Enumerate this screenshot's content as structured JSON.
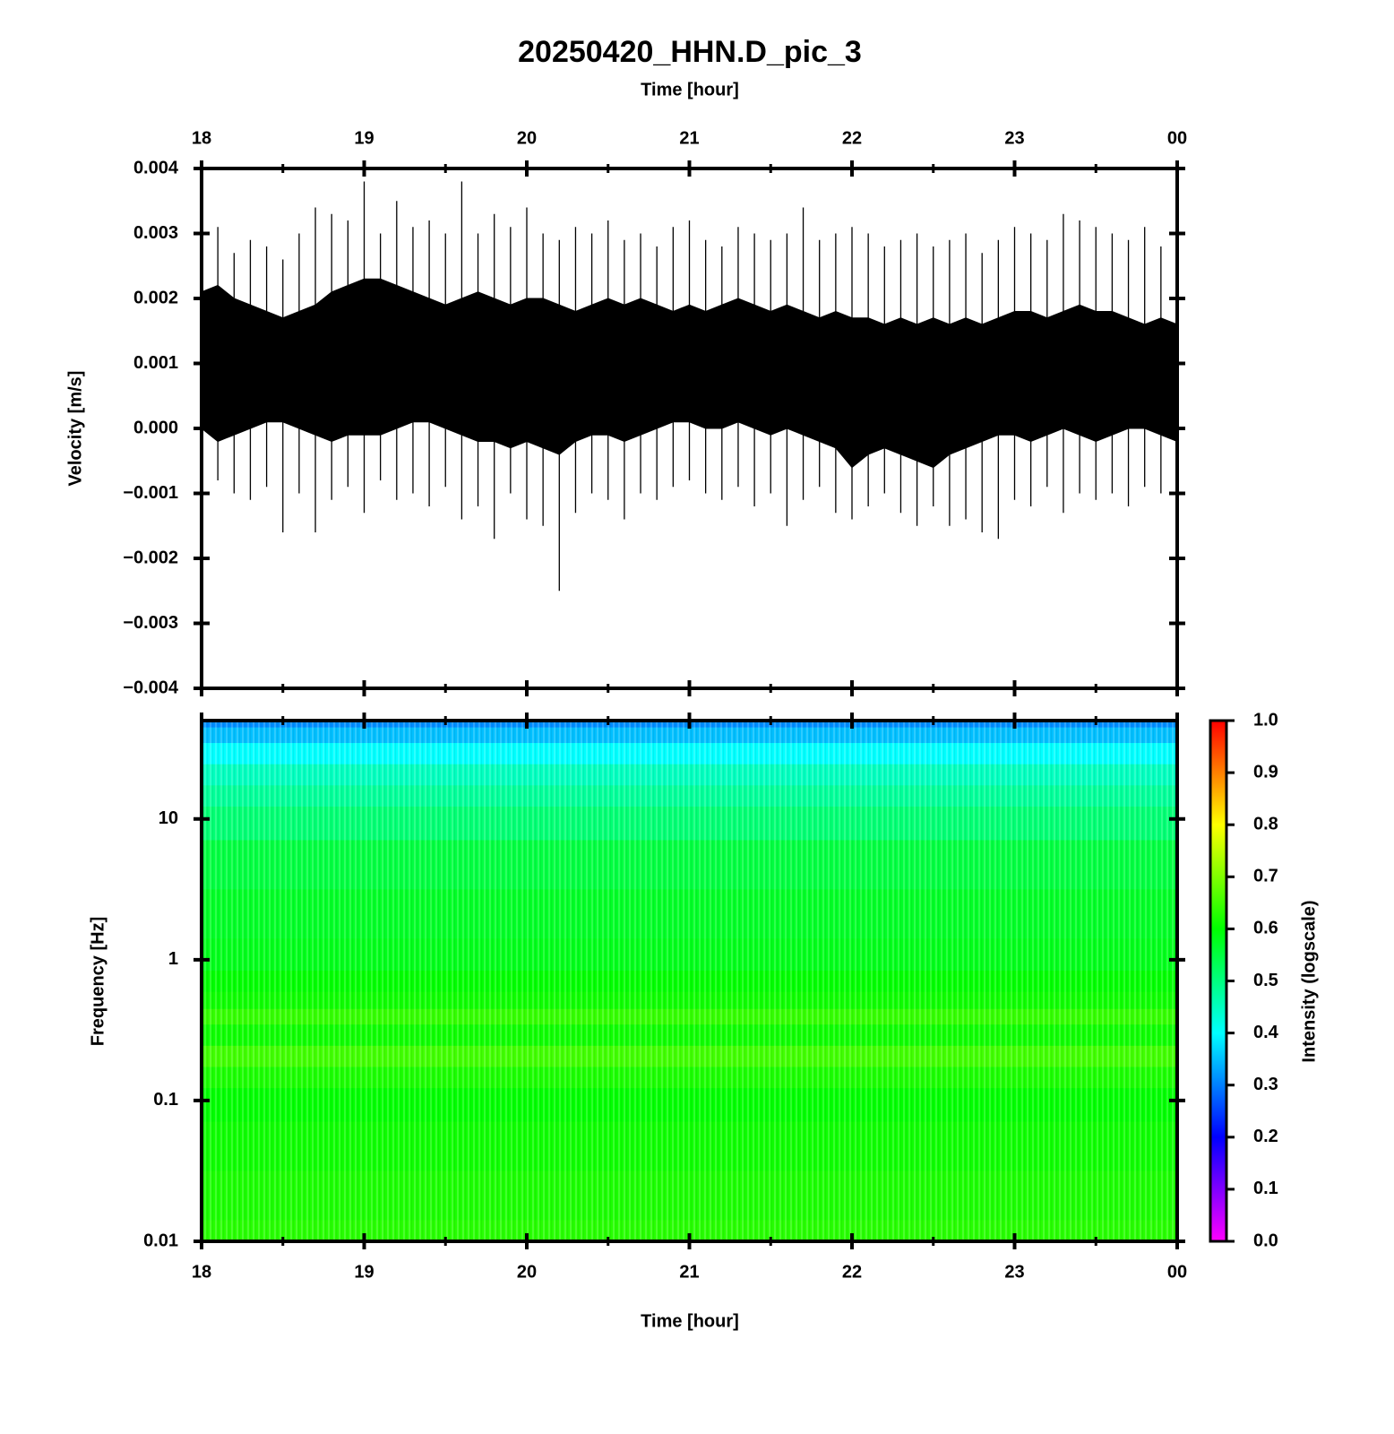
{
  "chart_data": [
    {
      "type": "waveform",
      "title": "20250420_HHN.D_pic_3",
      "xlabel": "Time [hour]",
      "ylabel": "Velocity [m/s]",
      "xlim": [
        18,
        24
      ],
      "xticks": [
        18,
        19,
        20,
        21,
        22,
        23,
        {
          "value": 24,
          "label": "00"
        }
      ],
      "ylim": [
        -0.004,
        0.004
      ],
      "yticks": [
        {
          "value": -0.004,
          "label": "−0.004"
        },
        {
          "value": -0.003,
          "label": "−0.003"
        },
        {
          "value": -0.002,
          "label": "−0.002"
        },
        {
          "value": -0.001,
          "label": "−0.001"
        },
        {
          "value": 0,
          "label": "0.000"
        },
        0.001,
        0.002,
        0.003,
        0.004
      ],
      "color": "#000000",
      "x": [
        18,
        18.1,
        18.2,
        18.3,
        18.4,
        18.5,
        18.6,
        18.7,
        18.8,
        18.9,
        19,
        19.1,
        19.2,
        19.3,
        19.4,
        19.5,
        19.6,
        19.7,
        19.8,
        19.9,
        20,
        20.1,
        20.2,
        20.3,
        20.4,
        20.5,
        20.6,
        20.7,
        20.8,
        20.9,
        21,
        21.1,
        21.2,
        21.3,
        21.4,
        21.5,
        21.6,
        21.7,
        21.8,
        21.9,
        22,
        22.1,
        22.2,
        22.3,
        22.4,
        22.5,
        22.6,
        22.7,
        22.8,
        22.9,
        23,
        23.1,
        23.2,
        23.3,
        23.4,
        23.5,
        23.6,
        23.7,
        23.8,
        23.9,
        24
      ],
      "core_upper": [
        0.0021,
        0.0022,
        0.002,
        0.0019,
        0.0018,
        0.0017,
        0.0018,
        0.0019,
        0.0021,
        0.0022,
        0.0023,
        0.0023,
        0.0022,
        0.0021,
        0.002,
        0.0019,
        0.002,
        0.0021,
        0.002,
        0.0019,
        0.002,
        0.002,
        0.0019,
        0.0018,
        0.0019,
        0.002,
        0.0019,
        0.002,
        0.0019,
        0.0018,
        0.0019,
        0.0018,
        0.0019,
        0.002,
        0.0019,
        0.0018,
        0.0019,
        0.0018,
        0.0017,
        0.0018,
        0.0017,
        0.0017,
        0.0016,
        0.0017,
        0.0016,
        0.0017,
        0.0016,
        0.0017,
        0.0016,
        0.0017,
        0.0018,
        0.0018,
        0.0017,
        0.0018,
        0.0019,
        0.0018,
        0.0018,
        0.0017,
        0.0016,
        0.0017,
        0.0016
      ],
      "core_lower": [
        0.0,
        -0.0002,
        -0.0001,
        0.0,
        0.0001,
        0.0001,
        0.0,
        -0.0001,
        -0.0002,
        -0.0001,
        -0.0001,
        -0.0001,
        0.0,
        0.0001,
        0.0001,
        0.0,
        -0.0001,
        -0.0002,
        -0.0002,
        -0.0003,
        -0.0002,
        -0.0003,
        -0.0004,
        -0.0002,
        -0.0001,
        -0.0001,
        -0.0002,
        -0.0001,
        0.0,
        0.0001,
        0.0001,
        0.0,
        0.0,
        0.0001,
        0.0,
        -0.0001,
        0.0,
        -0.0001,
        -0.0002,
        -0.0003,
        -0.0006,
        -0.0004,
        -0.0003,
        -0.0004,
        -0.0005,
        -0.0006,
        -0.0004,
        -0.0003,
        -0.0002,
        -0.0001,
        -0.0001,
        -0.0002,
        -0.0001,
        0.0,
        -0.0001,
        -0.0002,
        -0.0001,
        0.0,
        0.0,
        -0.0001,
        -0.0002
      ],
      "peak_upper": [
        0.0033,
        0.0031,
        0.0027,
        0.0029,
        0.0028,
        0.0026,
        0.003,
        0.0034,
        0.0033,
        0.0032,
        0.0038,
        0.003,
        0.0035,
        0.0031,
        0.0032,
        0.003,
        0.0038,
        0.003,
        0.0033,
        0.0031,
        0.0034,
        0.003,
        0.0029,
        0.0031,
        0.003,
        0.0032,
        0.0029,
        0.003,
        0.0028,
        0.0031,
        0.0032,
        0.0029,
        0.0028,
        0.0031,
        0.003,
        0.0029,
        0.003,
        0.0034,
        0.0029,
        0.003,
        0.0031,
        0.003,
        0.0028,
        0.0029,
        0.003,
        0.0028,
        0.0029,
        0.003,
        0.0027,
        0.0029,
        0.0031,
        0.003,
        0.0029,
        0.0033,
        0.0032,
        0.0031,
        0.003,
        0.0029,
        0.0031,
        0.0028,
        0.0026
      ],
      "peak_lower": [
        -0.0013,
        -0.0008,
        -0.001,
        -0.0011,
        -0.0009,
        -0.0016,
        -0.001,
        -0.0016,
        -0.0011,
        -0.0009,
        -0.0013,
        -0.0008,
        -0.0011,
        -0.001,
        -0.0012,
        -0.0009,
        -0.0014,
        -0.0012,
        -0.0017,
        -0.001,
        -0.0014,
        -0.0015,
        -0.0025,
        -0.0013,
        -0.001,
        -0.0011,
        -0.0014,
        -0.001,
        -0.0011,
        -0.0009,
        -0.0008,
        -0.001,
        -0.0011,
        -0.0009,
        -0.0012,
        -0.001,
        -0.0015,
        -0.0011,
        -0.0009,
        -0.0013,
        -0.0014,
        -0.0012,
        -0.001,
        -0.0013,
        -0.0015,
        -0.0012,
        -0.0015,
        -0.0014,
        -0.0016,
        -0.0017,
        -0.0011,
        -0.0012,
        -0.0009,
        -0.0013,
        -0.001,
        -0.0011,
        -0.001,
        -0.0012,
        -0.0009,
        -0.001,
        -0.0008
      ]
    },
    {
      "type": "spectrogram",
      "xlabel": "Time [hour]",
      "ylabel": "Frequency [Hz]",
      "colorbar_label": "Intensity (logscale)",
      "xlim": [
        18,
        24
      ],
      "xticks": [
        18,
        19,
        20,
        21,
        22,
        23,
        {
          "value": 24,
          "label": "00"
        }
      ],
      "ylim": [
        0.01,
        50
      ],
      "yticks": [
        0.01,
        0.1,
        1,
        10
      ],
      "yscale": "log",
      "frequencies": [
        50,
        40,
        30,
        20,
        15,
        10,
        5,
        2,
        1,
        0.7,
        0.5,
        0.4,
        0.3,
        0.2,
        0.15,
        0.1,
        0.05,
        0.02,
        0.01
      ],
      "intensity": [
        0.31,
        0.35,
        0.4,
        0.45,
        0.48,
        0.51,
        0.55,
        0.57,
        0.58,
        0.6,
        0.61,
        0.64,
        0.61,
        0.65,
        0.62,
        0.6,
        0.61,
        0.62,
        0.63
      ],
      "clim": [
        0,
        1
      ],
      "cticks": [
        {
          "value": 0,
          "label": "0.0"
        },
        0.1,
        0.2,
        0.3,
        0.4,
        0.5,
        0.6,
        0.7,
        0.8,
        0.9,
        {
          "value": 1,
          "label": "1.0"
        }
      ],
      "colormap": [
        "#ff00ff",
        "#0000ff",
        "#00ffff",
        "#00ff00",
        "#ffff00",
        "#ff0000"
      ]
    }
  ]
}
